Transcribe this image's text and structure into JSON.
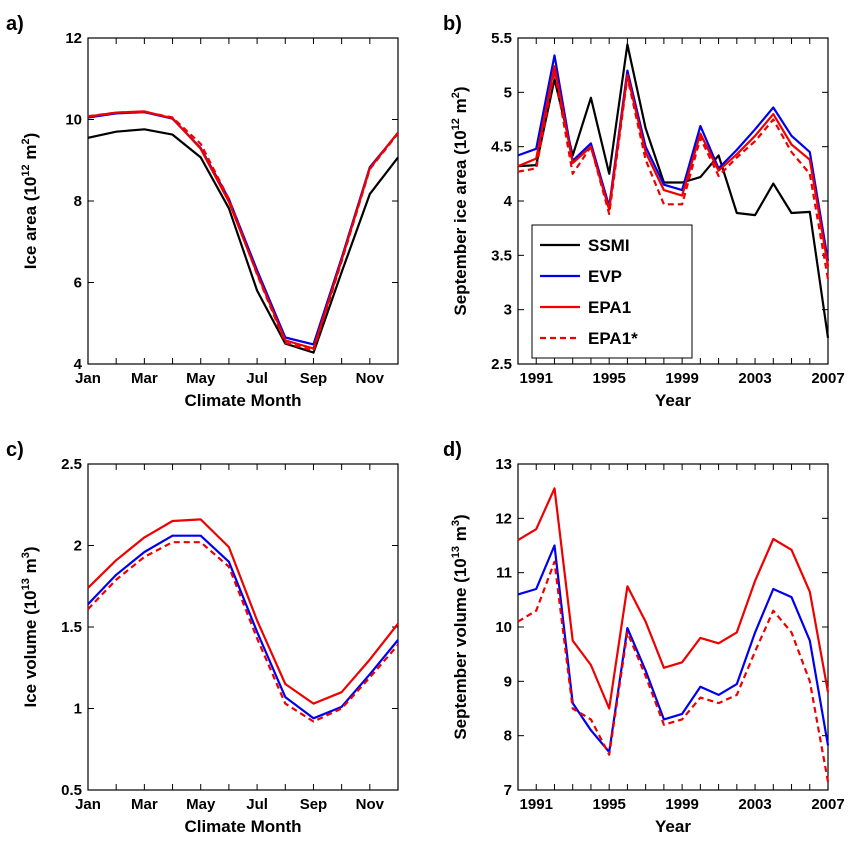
{
  "colors": {
    "SSMI": "#000000",
    "EVP": "#0000ee",
    "EPA1": "#ee0000",
    "EPA1*": "#ee0000"
  },
  "legend": {
    "entries": [
      {
        "name": "SSMI",
        "style": "solid"
      },
      {
        "name": "EVP",
        "style": "solid"
      },
      {
        "name": "EPA1",
        "style": "solid"
      },
      {
        "name": "EPA1*",
        "style": "dashed"
      }
    ]
  },
  "chart_data": [
    {
      "panel": "a)",
      "type": "line",
      "xlabel": "Climate Month",
      "ylabel": "Ice area (10^12 m^2)",
      "ylabel_parts": {
        "pre": "Ice area (10",
        "exp1": "12",
        "mid": " m",
        "exp2": "2",
        "post": ")"
      },
      "x": [
        1,
        2,
        3,
        4,
        5,
        6,
        7,
        8,
        9,
        10,
        11,
        12
      ],
      "xlim": [
        1,
        12
      ],
      "xticks": [
        1,
        3,
        5,
        7,
        9,
        11
      ],
      "xticklabels": [
        "Jan",
        "Mar",
        "May",
        "Jul",
        "Sep",
        "Nov"
      ],
      "ylim": [
        4,
        12
      ],
      "yticks": [
        4,
        6,
        8,
        10,
        12
      ],
      "yticklabels": [
        "4",
        "6",
        "8",
        "10",
        "12"
      ],
      "series": [
        {
          "name": "SSMI",
          "style": "solid",
          "values": [
            9.55,
            9.7,
            9.76,
            9.63,
            9.07,
            7.82,
            5.8,
            4.5,
            4.28,
            6.25,
            8.17,
            9.07
          ]
        },
        {
          "name": "EVP",
          "style": "solid",
          "values": [
            10.05,
            10.15,
            10.18,
            10.02,
            9.3,
            8.05,
            6.3,
            4.65,
            4.48,
            6.6,
            8.83,
            9.67
          ]
        },
        {
          "name": "EPA1",
          "style": "solid",
          "values": [
            10.07,
            10.17,
            10.2,
            10.03,
            9.28,
            7.98,
            6.22,
            4.58,
            4.38,
            6.55,
            8.8,
            9.68
          ]
        },
        {
          "name": "EPA1*",
          "style": "dashed",
          "values": [
            10.08,
            10.17,
            10.19,
            10.05,
            9.4,
            8.05,
            6.2,
            4.52,
            4.33,
            6.52,
            8.78,
            9.66
          ]
        }
      ]
    },
    {
      "panel": "b)",
      "type": "line",
      "xlabel": "Year",
      "ylabel": "September ice area (10^12 m^2)",
      "ylabel_parts": {
        "pre": "September ice area (10",
        "exp1": "12",
        "mid": " m",
        "exp2": "2",
        "post": ")"
      },
      "x": [
        1990,
        1991,
        1992,
        1993,
        1994,
        1995,
        1996,
        1997,
        1998,
        1999,
        2000,
        2001,
        2002,
        2003,
        2004,
        2005,
        2006,
        2007
      ],
      "xlim": [
        1990,
        2007
      ],
      "xticks": [
        1991,
        1995,
        1999,
        2003,
        2007
      ],
      "xticklabels": [
        "1991",
        "1995",
        "1999",
        "2003",
        "2007"
      ],
      "ylim": [
        2.5,
        5.5
      ],
      "yticks": [
        2.5,
        3,
        3.5,
        4,
        4.5,
        5,
        5.5
      ],
      "yticklabels": [
        "2.5",
        "3",
        "3.5",
        "4",
        "4.5",
        "5",
        "5.5"
      ],
      "series": [
        {
          "name": "SSMI",
          "style": "solid",
          "values": [
            4.32,
            4.33,
            5.12,
            4.42,
            4.95,
            4.25,
            5.44,
            4.67,
            4.17,
            4.17,
            4.22,
            4.42,
            3.89,
            3.87,
            4.16,
            3.89,
            3.9,
            2.74
          ]
        },
        {
          "name": "EVP",
          "style": "solid",
          "values": [
            4.42,
            4.48,
            5.34,
            4.37,
            4.53,
            3.95,
            5.2,
            4.5,
            4.15,
            4.1,
            4.69,
            4.3,
            4.47,
            4.66,
            4.86,
            4.6,
            4.45,
            3.45
          ]
        },
        {
          "name": "EPA1",
          "style": "solid",
          "values": [
            4.32,
            4.39,
            5.24,
            4.35,
            4.5,
            3.92,
            5.16,
            4.45,
            4.1,
            4.05,
            4.62,
            4.28,
            4.43,
            4.6,
            4.8,
            4.52,
            4.38,
            3.4
          ]
        },
        {
          "name": "EPA1*",
          "style": "dashed",
          "values": [
            4.27,
            4.3,
            5.2,
            4.25,
            4.5,
            3.88,
            5.14,
            4.38,
            3.97,
            3.97,
            4.58,
            4.23,
            4.4,
            4.55,
            4.75,
            4.45,
            4.25,
            3.28
          ]
        }
      ]
    },
    {
      "panel": "c)",
      "type": "line",
      "xlabel": "Climate Month",
      "ylabel": "Ice volume (10^13 m^3)",
      "ylabel_parts": {
        "pre": "Ice volume (10",
        "exp1": "13",
        "mid": " m",
        "exp2": "3",
        "post": ")"
      },
      "x": [
        1,
        2,
        3,
        4,
        5,
        6,
        7,
        8,
        9,
        10,
        11,
        12
      ],
      "xlim": [
        1,
        12
      ],
      "xticks": [
        1,
        3,
        5,
        7,
        9,
        11
      ],
      "xticklabels": [
        "Jan",
        "Mar",
        "May",
        "Jul",
        "Sep",
        "Nov"
      ],
      "ylim": [
        0.5,
        2.5
      ],
      "yticks": [
        0.5,
        1,
        1.5,
        2,
        2.5
      ],
      "yticklabels": [
        "0.5",
        "1",
        "1.5",
        "2",
        "2.5"
      ],
      "series": [
        {
          "name": "EVP",
          "style": "solid",
          "values": [
            1.64,
            1.82,
            1.96,
            2.06,
            2.06,
            1.9,
            1.47,
            1.07,
            0.94,
            1.01,
            1.21,
            1.42
          ]
        },
        {
          "name": "EPA1",
          "style": "solid",
          "values": [
            1.74,
            1.91,
            2.05,
            2.15,
            2.16,
            1.99,
            1.54,
            1.15,
            1.03,
            1.1,
            1.3,
            1.52
          ]
        },
        {
          "name": "EPA1*",
          "style": "dashed",
          "values": [
            1.61,
            1.79,
            1.93,
            2.02,
            2.02,
            1.87,
            1.43,
            1.03,
            0.92,
            1.0,
            1.19,
            1.39
          ]
        }
      ]
    },
    {
      "panel": "d)",
      "type": "line",
      "xlabel": "Year",
      "ylabel": "September volume (10^13 m^3)",
      "ylabel_parts": {
        "pre": "September volume (10",
        "exp1": "13",
        "mid": " m",
        "exp2": "3",
        "post": ")"
      },
      "x": [
        1990,
        1991,
        1992,
        1993,
        1994,
        1995,
        1996,
        1997,
        1998,
        1999,
        2000,
        2001,
        2002,
        2003,
        2004,
        2005,
        2006,
        2007
      ],
      "xlim": [
        1990,
        2007
      ],
      "xticks": [
        1991,
        1995,
        1999,
        2003,
        2007
      ],
      "xticklabels": [
        "1991",
        "1995",
        "1999",
        "2003",
        "2007"
      ],
      "ylim": [
        7,
        13
      ],
      "yticks": [
        7,
        8,
        9,
        10,
        11,
        12,
        13
      ],
      "yticklabels": [
        "7",
        "8",
        "9",
        "10",
        "11",
        "12",
        "13"
      ],
      "series": [
        {
          "name": "EVP",
          "style": "solid",
          "values": [
            10.6,
            10.7,
            11.5,
            8.6,
            8.1,
            7.7,
            9.98,
            9.2,
            8.3,
            8.4,
            8.9,
            8.75,
            8.95,
            9.9,
            10.7,
            10.55,
            9.75,
            7.82
          ]
        },
        {
          "name": "EPA1",
          "style": "solid",
          "values": [
            11.6,
            11.8,
            12.55,
            9.75,
            9.3,
            8.5,
            10.75,
            10.1,
            9.25,
            9.35,
            9.8,
            9.7,
            9.9,
            10.85,
            11.62,
            11.42,
            10.65,
            8.8
          ]
        },
        {
          "name": "EPA1*",
          "style": "dashed",
          "values": [
            10.1,
            10.3,
            11.2,
            8.5,
            8.3,
            7.65,
            9.9,
            9.1,
            8.2,
            8.3,
            8.7,
            8.6,
            8.75,
            9.55,
            10.3,
            9.9,
            9.0,
            7.15
          ]
        }
      ]
    }
  ]
}
